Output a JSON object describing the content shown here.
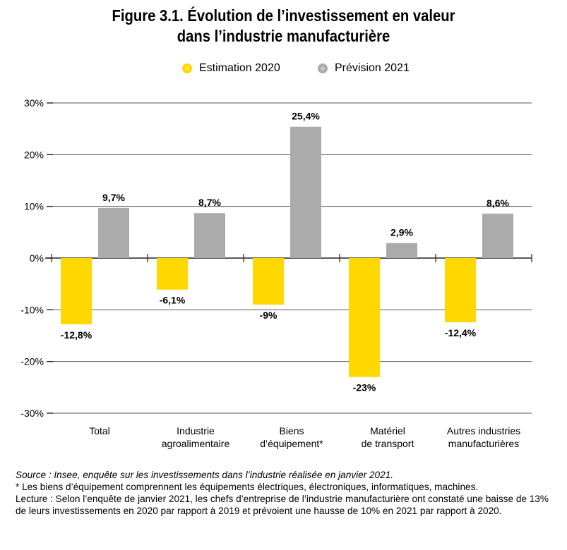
{
  "title_line1": "Figure 3.1. Évolution de l’investissement en valeur",
  "title_line2": "dans l’industrie manufacturière",
  "colors": {
    "estimation": "#FFD800",
    "prevision": "#ABABAB",
    "grid": "#555555"
  },
  "chart_data": {
    "type": "bar",
    "categories": [
      "Total",
      "Industrie\nagroalimentaire",
      "Biens\nd’équipement*",
      "Matériel\nde transport",
      "Autres industries\nmanufacturières"
    ],
    "series": [
      {
        "name": "Estimation 2020",
        "values": [
          -12.8,
          -6.1,
          -9,
          -23,
          -12.4
        ],
        "labels": [
          "-12,8%",
          "-6,1%",
          "-9%",
          "-23%",
          "-12,4%"
        ]
      },
      {
        "name": "Prévision 2021",
        "values": [
          9.7,
          8.7,
          25.4,
          2.9,
          8.6
        ],
        "labels": [
          "9,7%",
          "8,7%",
          "25,4%",
          "2,9%",
          "8,6%"
        ]
      }
    ],
    "ylim": [
      -30,
      30
    ],
    "yticks": [
      30,
      20,
      10,
      0,
      -10,
      -20,
      -30
    ],
    "ytick_labels": [
      "30%",
      "20%",
      "10%",
      "0%",
      "-10%",
      "-20%",
      "-30%"
    ],
    "grid": true,
    "legend": "top-center"
  },
  "notes": {
    "source": "Source : Insee, enquête sur les investissements dans l’industrie réalisée en janvier 2021.",
    "footnote": "* Les biens d’équipement comprennent les équipements électriques, électroniques, informatiques, machines.",
    "reading": "Lecture : Selon l’enquête de janvier 2021, les chefs d’entreprise de l’industrie manufacturière ont constaté une baisse de 13% de leurs investissements en 2020 par rapport à 2019 et prévoient une hausse de 10% en 2021 par rapport à 2020."
  }
}
